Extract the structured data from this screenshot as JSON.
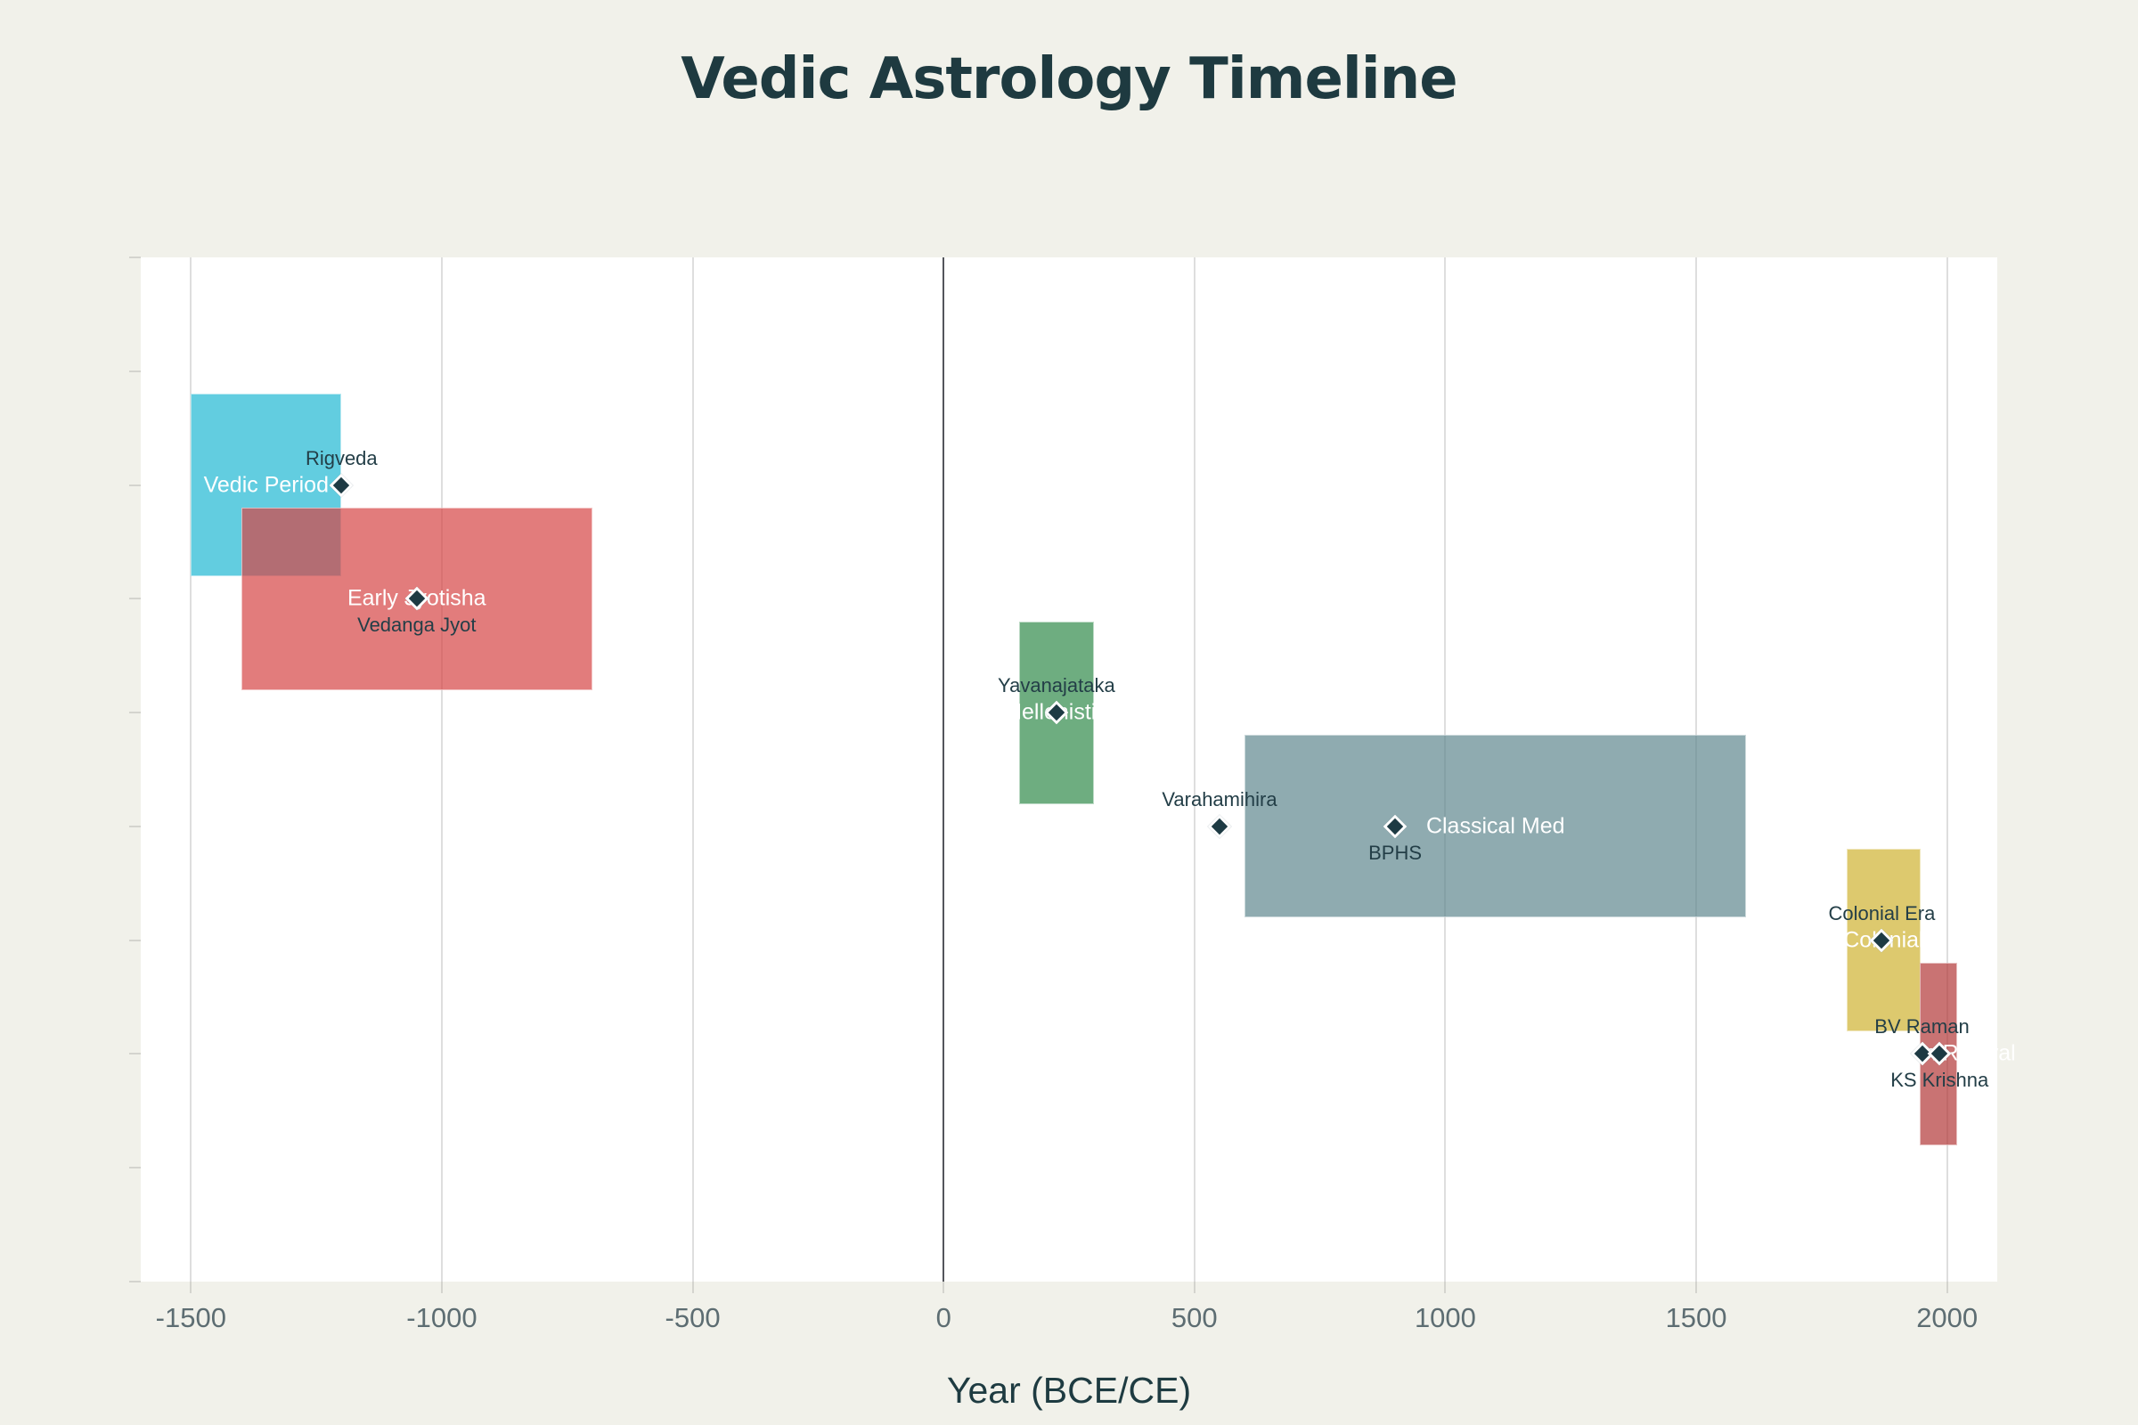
{
  "title": {
    "text": "Vedic Astrology Timeline"
  },
  "axis": {
    "x_label": "Year (BCE/CE)",
    "x_ticks": [
      -1500,
      -1000,
      -500,
      0,
      500,
      1000,
      1500,
      2000
    ],
    "x_tick_labels": [
      "-1500",
      "-1000",
      "-500",
      "0",
      "500",
      "1000",
      "1500",
      "2000"
    ],
    "x_range": [
      -1600,
      2100
    ],
    "y_steps": 9,
    "gridlines": "vertical-only",
    "zero_line": true
  },
  "chart_data": {
    "type": "timeline",
    "title": "Vedic Astrology Timeline",
    "xlabel": "Year (BCE/CE)",
    "xlim": [
      -1600,
      2100
    ],
    "bar_opacity": 0.7,
    "legend": "none",
    "periods": [
      {
        "label": "Vedic Period",
        "start": -1500,
        "end": -1200,
        "row": 2,
        "color": "#20b8d3"
      },
      {
        "label": "Early Jyotisha",
        "start": -1400,
        "end": -700,
        "row": 3,
        "color": "#d54545"
      },
      {
        "label": "Hellenistic",
        "start": 150,
        "end": 300,
        "row": 4,
        "color": "#318a4a"
      },
      {
        "label": "Classical Med",
        "start": 600,
        "end": 1600,
        "row": 5,
        "color": "#5f878e"
      },
      {
        "label": "Colonial",
        "start": 1800,
        "end": 1947,
        "row": 6,
        "color": "#ceb230"
      },
      {
        "label": "Modern Revival",
        "start": 1945,
        "end": 2020,
        "row": 7,
        "color": "#b23837"
      }
    ],
    "events": [
      {
        "label": "Rigveda",
        "year": -1200,
        "row": 2,
        "label_pos": "above"
      },
      {
        "label": "Vedanga Jyot",
        "year": -1050,
        "row": 3,
        "label_pos": "below"
      },
      {
        "label": "Yavanajataka",
        "year": 225,
        "row": 4,
        "label_pos": "above"
      },
      {
        "label": "Varahamihira",
        "year": 550,
        "row": 5,
        "label_pos": "above"
      },
      {
        "label": "BPHS",
        "year": 900,
        "row": 5,
        "label_pos": "below"
      },
      {
        "label": "Colonial Era",
        "year": 1870,
        "row": 6,
        "label_pos": "above"
      },
      {
        "label": "BV Raman",
        "year": 1950,
        "row": 7,
        "label_pos": "above"
      },
      {
        "label": "KS Krishna",
        "year": 1985,
        "row": 7,
        "label_pos": "below"
      }
    ]
  },
  "colors": {
    "page_background": "#f1f1ea",
    "plot_background": "#ffffff",
    "gridline": "#dedede",
    "zero_line": "#54565c",
    "tick": "#d4d4ce",
    "tick_label": "#5d6d72",
    "axis_title": "#1e3b41",
    "chart_title": "#1e3a40",
    "marker": "#1d3a43",
    "marker_border": "#ffffff",
    "bar_label": "#ffffff",
    "event_label": "#233e47"
  }
}
